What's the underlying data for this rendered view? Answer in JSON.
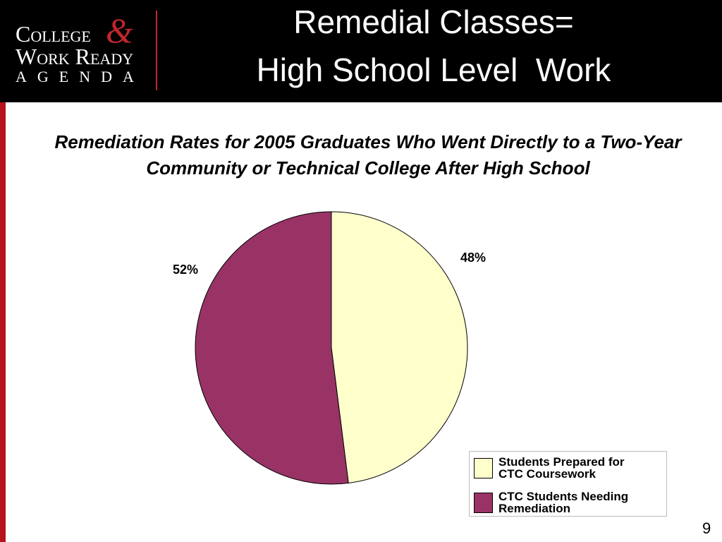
{
  "header": {
    "logo": {
      "line1": "College",
      "ampersand": "&",
      "line2": "Work Ready",
      "line3": "AGENDA"
    },
    "title": [
      "Remedial Classes=",
      "High School Level  Work"
    ]
  },
  "chart_data": {
    "type": "pie",
    "title": "Remediation Rates for 2005 Graduates Who Went Directly to a Two-Year Community or Technical College After High School",
    "categories": [
      "Students Prepared for CTC Coursework",
      "CTC Students Needing Remediation"
    ],
    "values": [
      48,
      52
    ],
    "value_labels": [
      "48%",
      "52%"
    ],
    "colors": [
      "#ffffcc",
      "#993366"
    ]
  },
  "page_number": "9"
}
